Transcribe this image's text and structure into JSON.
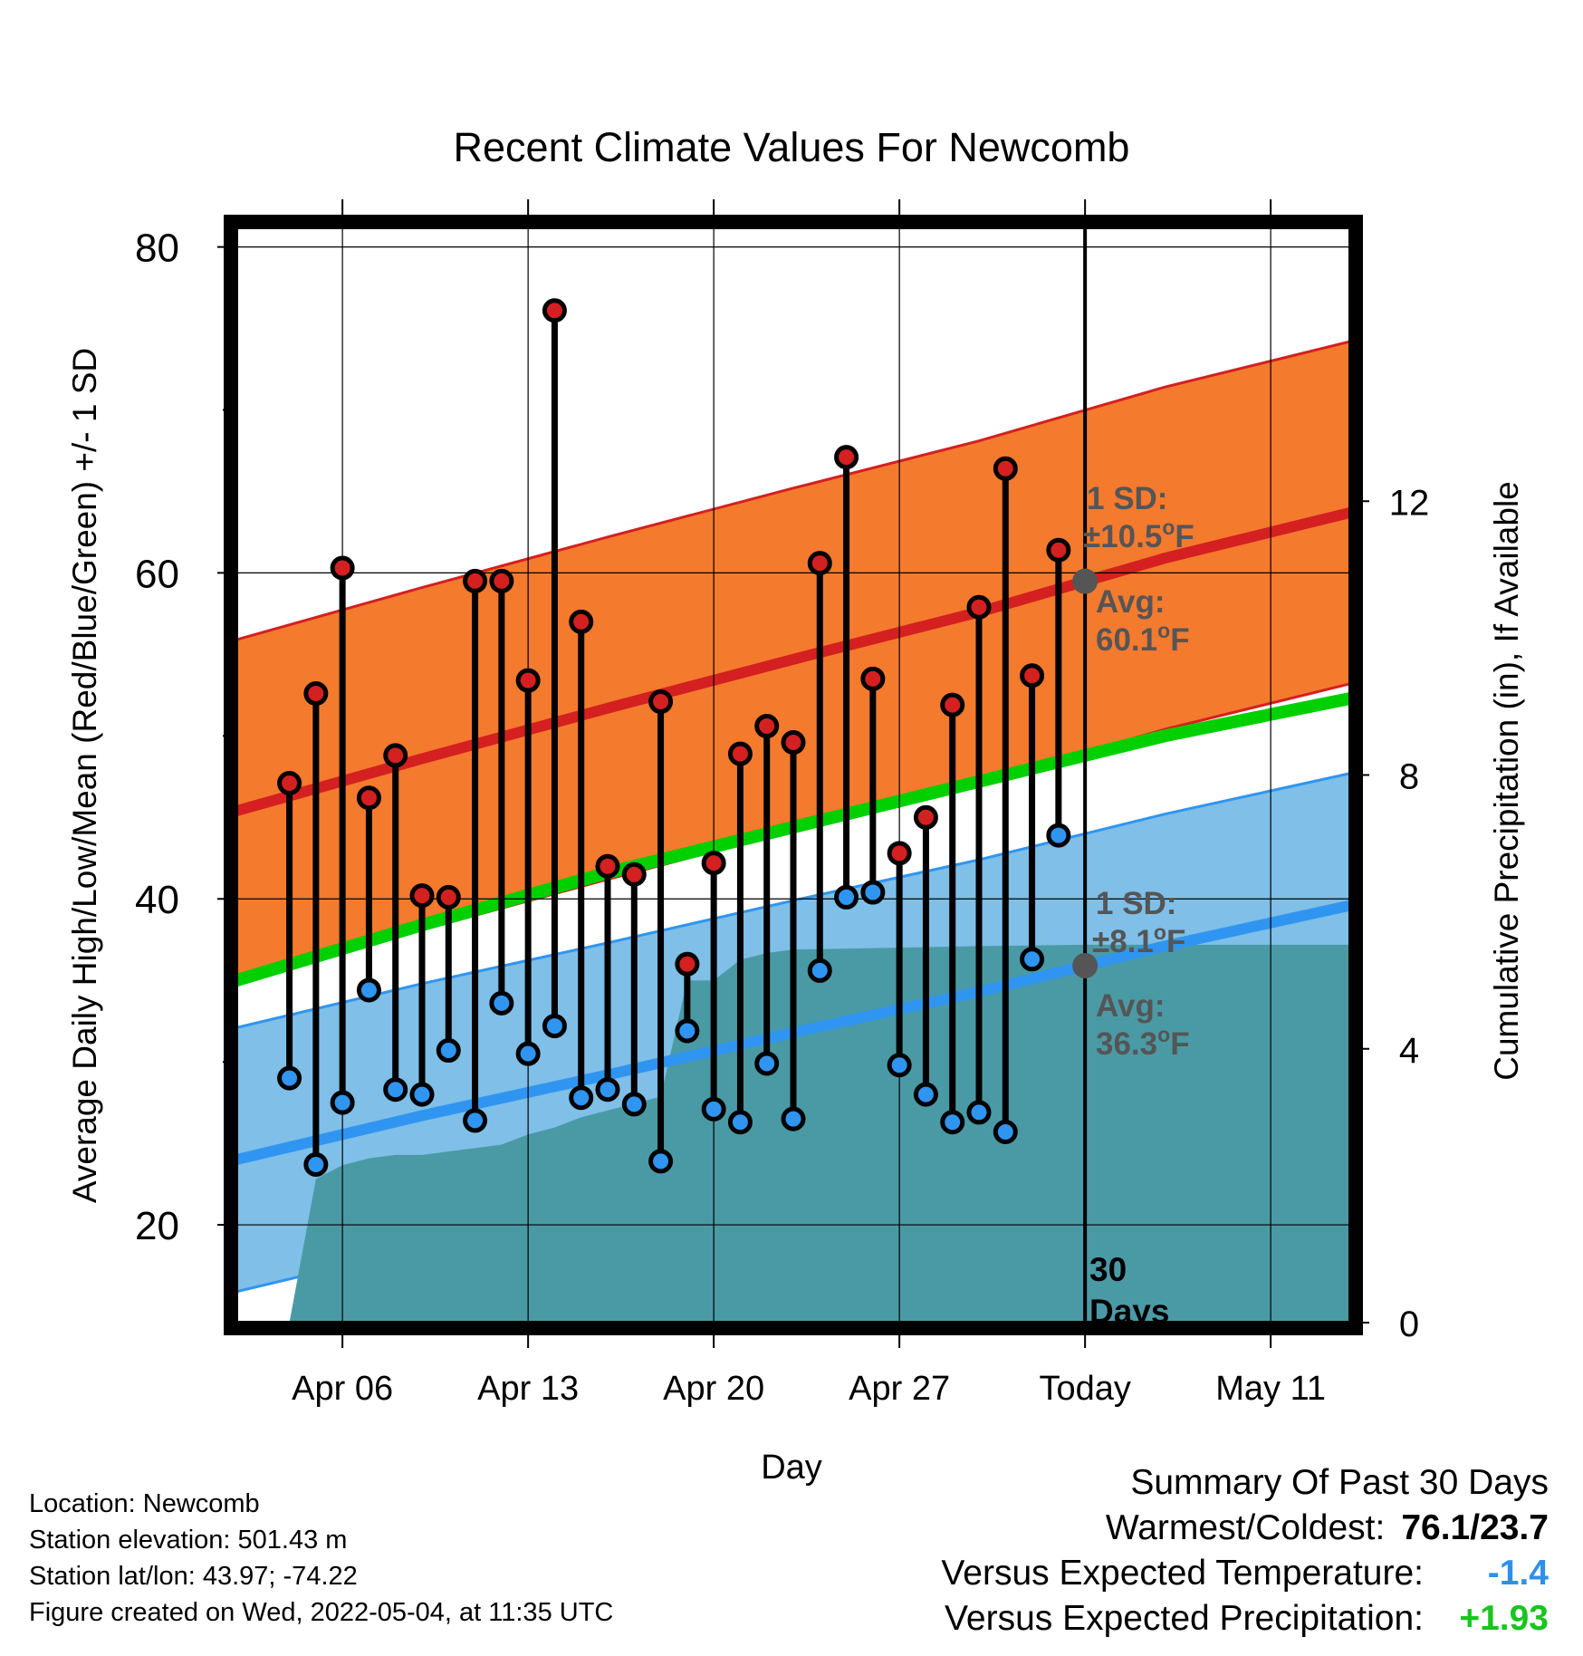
{
  "chart_data": {
    "type": "line",
    "title": "Recent Climate Values For Newcomb",
    "xlabel": "Day",
    "ylabel": "Average Daily High/Low/Mean (Red/Blue/Green) +/- 1 SD",
    "y2label": "Cumulative Precipitation (in), If Available",
    "ylim": [
      14,
      81.2
    ],
    "y2lim": [
      0,
      16
    ],
    "yticks": [
      20,
      40,
      60,
      80
    ],
    "y2ticks": [
      0,
      4,
      8,
      12
    ],
    "x_range": [
      "2022-04-02",
      "2022-05-14"
    ],
    "xticks": [
      {
        "date": "2022-04-06",
        "label": "Apr 06"
      },
      {
        "date": "2022-04-13",
        "label": "Apr 13"
      },
      {
        "date": "2022-04-20",
        "label": "Apr 20"
      },
      {
        "date": "2022-04-27",
        "label": "Apr 27"
      },
      {
        "date": "2022-05-04",
        "label": "Today"
      },
      {
        "date": "2022-05-11",
        "label": "May 11"
      }
    ],
    "today": "2022-05-04",
    "today_label": "30\nDays",
    "grid": true,
    "series": [
      {
        "name": "High",
        "color": "#d42020",
        "x": [
          "2022-04-04",
          "2022-04-05",
          "2022-04-06",
          "2022-04-07",
          "2022-04-08",
          "2022-04-09",
          "2022-04-10",
          "2022-04-11",
          "2022-04-12",
          "2022-04-13",
          "2022-04-14",
          "2022-04-15",
          "2022-04-16",
          "2022-04-17",
          "2022-04-18",
          "2022-04-19",
          "2022-04-20",
          "2022-04-21",
          "2022-04-22",
          "2022-04-23",
          "2022-04-24",
          "2022-04-25",
          "2022-04-26",
          "2022-04-27",
          "2022-04-28",
          "2022-04-29",
          "2022-04-30",
          "2022-05-01",
          "2022-05-02",
          "2022-05-03"
        ],
        "values": [
          47.1,
          52.6,
          60.3,
          46.2,
          48.8,
          40.2,
          40.1,
          59.5,
          59.5,
          53.4,
          76.1,
          57.0,
          42.0,
          41.5,
          52.1,
          36.0,
          42.2,
          48.9,
          50.6,
          49.6,
          60.6,
          67.1,
          53.5,
          42.8,
          45.0,
          51.9,
          57.9,
          66.4,
          53.7,
          61.4
        ]
      },
      {
        "name": "Low",
        "color": "#2f95f0",
        "x": [
          "2022-04-04",
          "2022-04-05",
          "2022-04-06",
          "2022-04-07",
          "2022-04-08",
          "2022-04-09",
          "2022-04-10",
          "2022-04-11",
          "2022-04-12",
          "2022-04-13",
          "2022-04-14",
          "2022-04-15",
          "2022-04-16",
          "2022-04-17",
          "2022-04-18",
          "2022-04-19",
          "2022-04-20",
          "2022-04-21",
          "2022-04-22",
          "2022-04-23",
          "2022-04-24",
          "2022-04-25",
          "2022-04-26",
          "2022-04-27",
          "2022-04-28",
          "2022-04-29",
          "2022-04-30",
          "2022-05-01",
          "2022-05-02",
          "2022-05-03"
        ],
        "values": [
          29.0,
          23.7,
          27.5,
          34.4,
          28.3,
          28.0,
          30.7,
          26.4,
          33.6,
          30.5,
          32.2,
          27.8,
          28.3,
          27.4,
          23.9,
          31.9,
          27.1,
          26.3,
          29.9,
          26.5,
          35.6,
          40.1,
          40.4,
          29.8,
          28.0,
          26.3,
          26.9,
          25.7,
          36.3,
          43.9
        ]
      },
      {
        "name": "Normal High",
        "color": "#d42020",
        "x": [
          "2022-04-02",
          "2022-04-09",
          "2022-04-16",
          "2022-04-23",
          "2022-04-30",
          "2022-05-07",
          "2022-05-14"
        ],
        "values": [
          45.4,
          48.6,
          51.7,
          54.7,
          57.6,
          60.9,
          63.7
        ],
        "sd": 10.5
      },
      {
        "name": "Normal Low",
        "color": "#2f95f0",
        "x": [
          "2022-04-02",
          "2022-04-09",
          "2022-04-16",
          "2022-04-23",
          "2022-04-30",
          "2022-05-07",
          "2022-05-14"
        ],
        "values": [
          24.0,
          26.7,
          29.2,
          31.8,
          34.3,
          37.1,
          39.6
        ],
        "sd": 8.1
      },
      {
        "name": "Normal Mean",
        "color": "#00d000",
        "x": [
          "2022-04-02",
          "2022-04-09",
          "2022-04-16",
          "2022-04-23",
          "2022-04-30",
          "2022-05-07",
          "2022-05-14"
        ],
        "values": [
          35.0,
          38.4,
          41.6,
          44.4,
          47.2,
          50.0,
          52.3
        ]
      },
      {
        "name": "Cumulative Precipitation",
        "axis": "y2",
        "color": "#4a9aa5",
        "x": [
          "2022-04-02",
          "2022-04-04",
          "2022-04-05",
          "2022-04-06",
          "2022-04-07",
          "2022-04-08",
          "2022-04-09",
          "2022-04-10",
          "2022-04-11",
          "2022-04-12",
          "2022-04-13",
          "2022-04-14",
          "2022-04-15",
          "2022-04-16",
          "2022-04-17",
          "2022-04-18",
          "2022-04-19",
          "2022-04-20",
          "2022-04-21",
          "2022-04-22",
          "2022-04-23",
          "2022-04-30",
          "2022-05-04",
          "2022-05-14"
        ],
        "values": [
          0,
          0,
          2.1,
          2.3,
          2.4,
          2.45,
          2.45,
          2.5,
          2.55,
          2.6,
          2.75,
          2.85,
          3.0,
          3.1,
          3.2,
          3.3,
          5.0,
          5.0,
          5.3,
          5.4,
          5.45,
          5.5,
          5.52,
          5.52
        ]
      }
    ],
    "annotations": {
      "high_sd_label": "1 SD:",
      "high_sd_value": "±10.5",
      "high_avg_label": "Avg:",
      "high_avg_value": "60.1",
      "low_sd_label": "1 SD:",
      "low_sd_value": "±8.1",
      "low_avg_label": "Avg:",
      "low_avg_value": "36.3",
      "degree_unit": "o",
      "temp_unit": "F"
    }
  },
  "info": {
    "location": "Location: Newcomb",
    "elevation": "Station elevation: 501.43 m",
    "latlon": "Station lat/lon: 43.97; -74.22",
    "created": "Figure created on Wed, 2022-05-04, at 11:35 UTC"
  },
  "summary": {
    "title": "Summary Of Past 30 Days",
    "warmest_label": "Warmest/Coldest:",
    "warmest_value": "76.1/23.7",
    "temp_label": "Versus Expected Temperature:",
    "temp_value": "-1.4",
    "precip_label": "Versus Expected Precipitation:",
    "precip_value": "+1.93"
  },
  "colors": {
    "high_band": "#f47a2e",
    "low_band": "#7fbfe8",
    "precip": "#4a9aa5",
    "annotation_text": "#555555"
  }
}
